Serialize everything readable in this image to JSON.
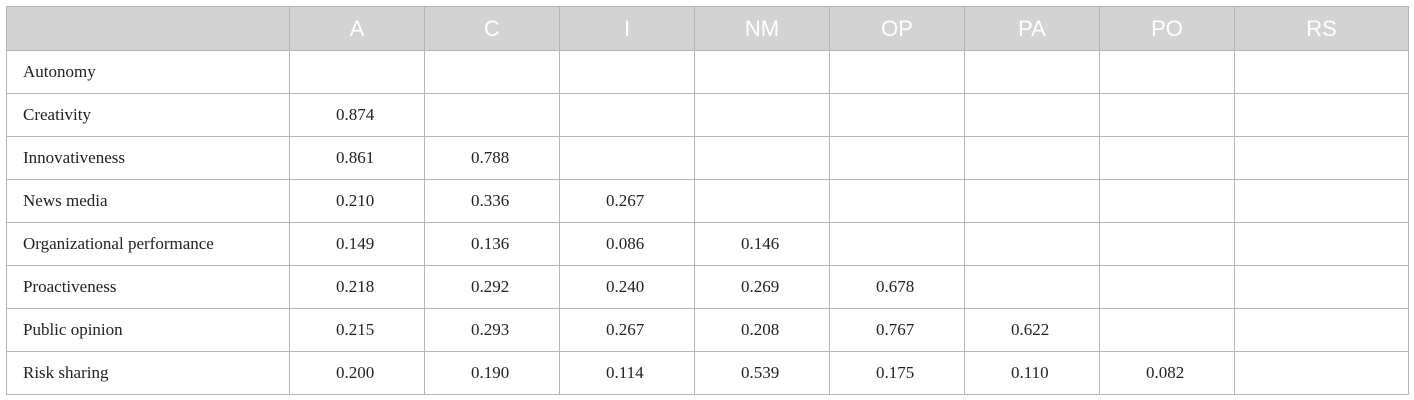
{
  "table": {
    "columns": [
      "A",
      "C",
      "I",
      "NM",
      "OP",
      "PA",
      "PO",
      "RS"
    ],
    "rows": [
      {
        "label": "Autonomy",
        "values": []
      },
      {
        "label": "Creativity",
        "values": [
          "0.874"
        ]
      },
      {
        "label": "Innovativeness",
        "values": [
          "0.861",
          "0.788"
        ]
      },
      {
        "label": "News media",
        "values": [
          "0.210",
          "0.336",
          "0.267"
        ]
      },
      {
        "label": "Organizational performance",
        "values": [
          "0.149",
          "0.136",
          "0.086",
          "0.146"
        ]
      },
      {
        "label": "Proactiveness",
        "values": [
          "0.218",
          "0.292",
          "0.240",
          "0.269",
          "0.678"
        ]
      },
      {
        "label": "Public opinion",
        "values": [
          "0.215",
          "0.293",
          "0.267",
          "0.208",
          "0.767",
          "0.622"
        ]
      },
      {
        "label": "Risk sharing",
        "values": [
          "0.200",
          "0.190",
          "0.114",
          "0.539",
          "0.175",
          "0.110",
          "0.082"
        ]
      }
    ]
  }
}
